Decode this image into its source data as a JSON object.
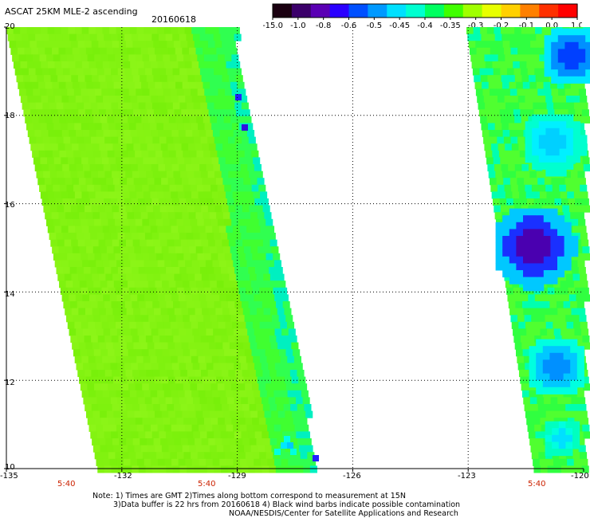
{
  "title": "ASCAT 25KM MLE-2 ascending",
  "date": "20160618",
  "colorbar": {
    "colors": [
      "#1a0010",
      "#3b006a",
      "#5a00b4",
      "#2a00ff",
      "#0050ff",
      "#0099ff",
      "#00e0ff",
      "#00ffd0",
      "#00ff60",
      "#40ff00",
      "#a0ff00",
      "#e8ff00",
      "#ffd000",
      "#ff8000",
      "#ff3000",
      "#ff0000"
    ],
    "labels": [
      "-15.0",
      "-1.0",
      "-0.8",
      "-0.6",
      "-0.5",
      "-0.45",
      "-0.4",
      "-0.35",
      "-0.3",
      "-0.2",
      "-0.1",
      "0.0",
      "1.0"
    ]
  },
  "yaxis": [
    "20",
    "18",
    "16",
    "14",
    "12",
    "10"
  ],
  "xaxis": [
    "-135",
    "-132",
    "-129",
    "-126",
    "-123",
    "-120"
  ],
  "times": [
    "5:40",
    "5:40",
    "5:40"
  ],
  "notes": [
    "Note: 1) Times are GMT 2)Times along bottom correspond to measurement at 15N",
    "3)Data buffer is 22 hrs from 20160618 4) Black wind barbs indicate possible contamination",
    "NOAA/NESDIS/Center for Satellite Applications and Research"
  ],
  "colors": {
    "swath_main": "#8cff18",
    "swath_alt": "#6cff22",
    "cyan": "#00ffe0",
    "blue": "#0060ff",
    "deep": "#5000b0"
  }
}
